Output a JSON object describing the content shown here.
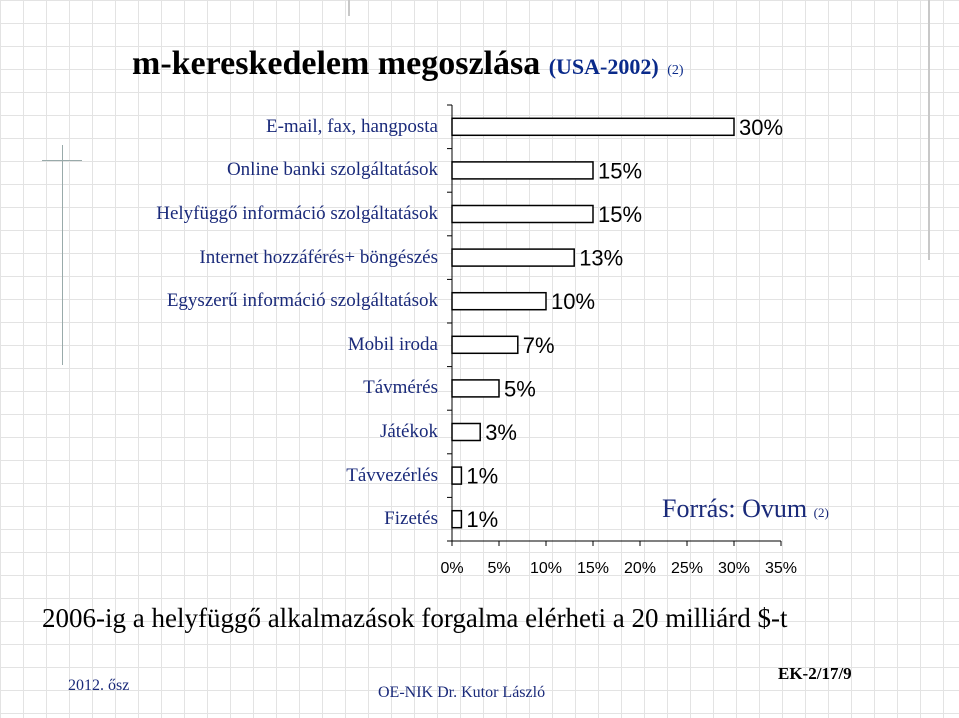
{
  "title": {
    "main": "m-kereskedelem megoszlása",
    "sub": "(USA-2002)",
    "ref": "(2)"
  },
  "source": {
    "text": "Forrás: Ovum",
    "ref": "(2)"
  },
  "bottom_line": "2006-ig a helyfüggő alkalmazások forgalma elérheti a 20 milliárd $-t",
  "footer": {
    "left": "2012. ősz",
    "center": "OE-NIK   Dr. Kutor László",
    "right": "EK-2/17/9"
  },
  "colors": {
    "bar_fill": "#ffffff",
    "bar_stroke": "#000000",
    "label": "#1a2a7a",
    "value_label": "#000000"
  },
  "chart_data": {
    "type": "bar",
    "orientation": "horizontal",
    "categories": [
      "E-mail, fax, hangposta",
      "Online banki szolgáltatások",
      "Helyfüggő információ szolgáltatások",
      "Internet hozzáférés+ böngészés",
      "Egyszerű információ szolgáltatások",
      "Mobil iroda",
      "Távmérés",
      "Játékok",
      "Távvezérlés",
      "Fizetés"
    ],
    "values": [
      30,
      15,
      15,
      13,
      10,
      7,
      5,
      3,
      1,
      1
    ],
    "value_labels": [
      "30%",
      "15%",
      "15%",
      "13%",
      "10%",
      "7%",
      "5%",
      "3%",
      "1%",
      "1%"
    ],
    "xlim": [
      0,
      35
    ],
    "xticks": [
      "0%",
      "5%",
      "10%",
      "15%",
      "20%",
      "25%",
      "30%",
      "35%"
    ],
    "xlabel": "",
    "ylabel": "",
    "grid": false,
    "legend": "none"
  }
}
